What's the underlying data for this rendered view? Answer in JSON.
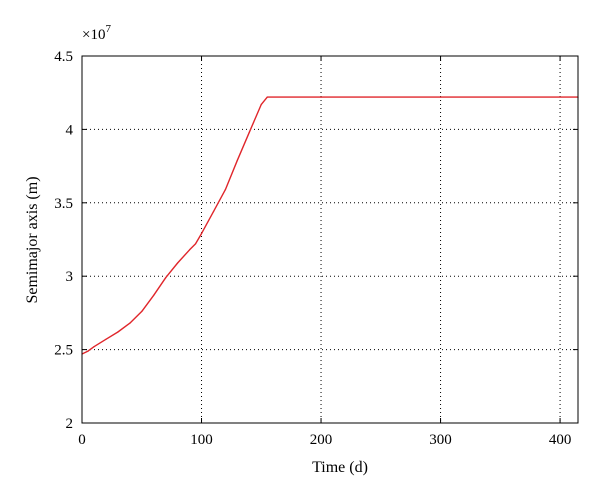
{
  "chart_data": {
    "type": "line",
    "xlabel": "Time (d)",
    "ylabel": "Semimajor axis (m)",
    "y_multiplier": "×10",
    "y_multiplier_exponent": "7",
    "xlim": [
      0,
      415
    ],
    "ylim": [
      2,
      4.5
    ],
    "x_ticks": [
      0,
      100,
      200,
      300,
      400
    ],
    "x_tick_labels": [
      "0",
      "100",
      "200",
      "300",
      "400"
    ],
    "y_ticks": [
      2,
      2.5,
      3,
      3.5,
      4,
      4.5
    ],
    "y_tick_labels": [
      "2",
      "2.5",
      "3",
      "3.5",
      "4",
      "4.5"
    ],
    "grid": true,
    "series": [
      {
        "color": "#e0262b",
        "x": [
          0,
          5,
          10,
          20,
          30,
          40,
          50,
          60,
          70,
          80,
          90,
          95,
          100,
          110,
          120,
          130,
          140,
          150,
          155,
          200,
          300,
          415
        ],
        "y": [
          2.47,
          2.49,
          2.52,
          2.57,
          2.62,
          2.68,
          2.76,
          2.87,
          2.99,
          3.09,
          3.18,
          3.22,
          3.29,
          3.44,
          3.59,
          3.79,
          3.98,
          4.17,
          4.22,
          4.22,
          4.22,
          4.22
        ]
      }
    ]
  }
}
